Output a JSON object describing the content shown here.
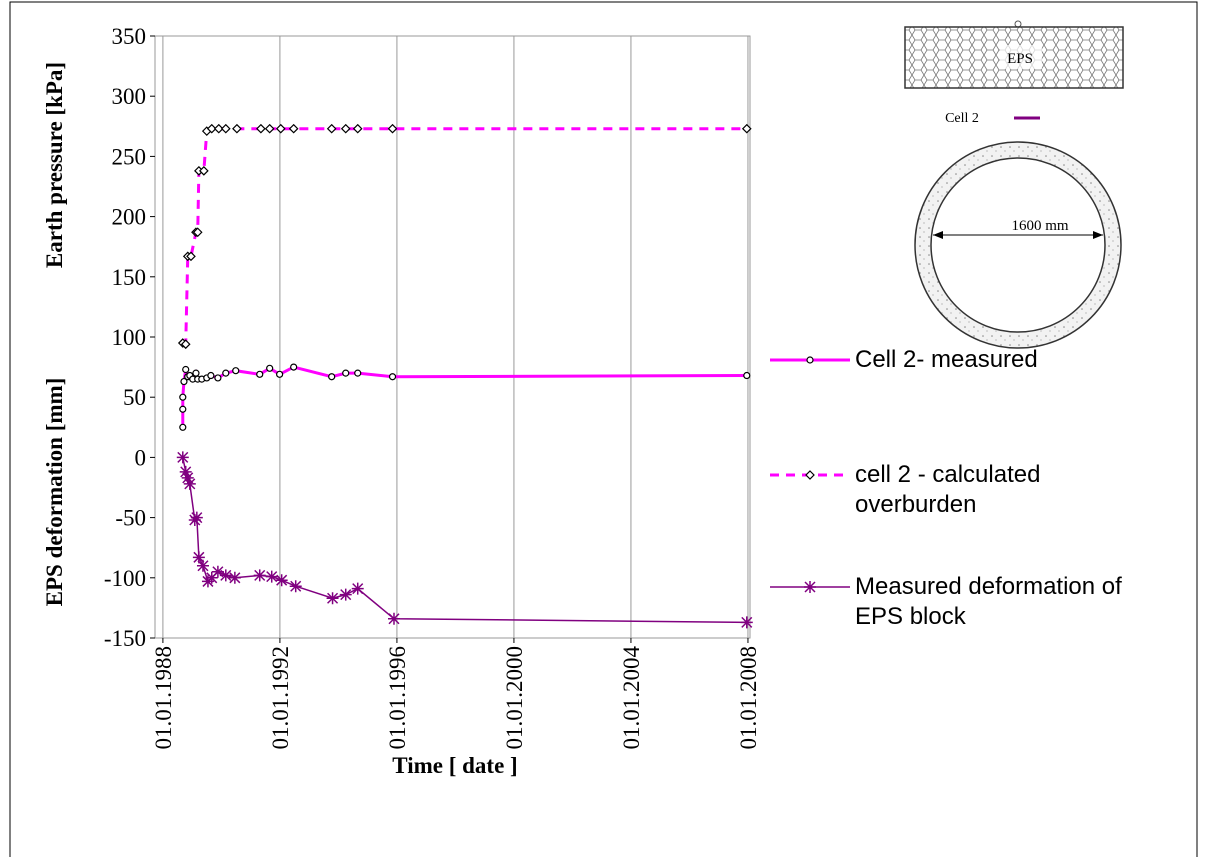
{
  "chart_data": {
    "type": "line",
    "y_axis_labels": [
      "EPS deformation [mm]",
      "Earth pressure [kPa]"
    ],
    "x_axis_label": "Time [ date ]",
    "annotations": [
      "EPS",
      "Cell 2",
      "1600 mm"
    ],
    "xlim": [
      1987.73,
      2008.07
    ],
    "xticks": [
      {
        "value": 1988,
        "label": "01.01.1988"
      },
      {
        "value": 1992,
        "label": "01.01.1992"
      },
      {
        "value": 1996,
        "label": "01.01.1996"
      },
      {
        "value": 2000,
        "label": "01.01.2000"
      },
      {
        "value": 2004,
        "label": "01.01.2004"
      },
      {
        "value": 2008,
        "label": "01.01.2008"
      }
    ],
    "ylim": [
      -150,
      350
    ],
    "yticks": [
      -150,
      -100,
      -50,
      0,
      50,
      100,
      150,
      200,
      250,
      300,
      350
    ],
    "grid": "x",
    "series": [
      {
        "name": "Cell 2- measured",
        "color": "#ff00ff",
        "marker": "circle",
        "dash": false,
        "width": 3,
        "x": [
          1988.68,
          1988.68,
          1988.68,
          1988.72,
          1988.78,
          1988.85,
          1988.92,
          1989.02,
          1989.13,
          1989.19,
          1989.33,
          1989.5,
          1989.64,
          1989.88,
          1990.15,
          1990.49,
          1991.31,
          1991.65,
          1991.99,
          1992.47,
          1993.77,
          1994.25,
          1994.66,
          1995.85,
          2007.96
        ],
        "values": [
          25,
          40,
          50,
          63,
          73,
          67,
          68,
          65,
          70,
          65,
          65,
          66,
          68,
          66,
          70,
          72,
          69,
          74,
          69,
          75,
          67,
          70,
          70,
          67,
          68
        ]
      },
      {
        "name": "cell 2 - calculated overburden",
        "color": "#ff00ff",
        "marker": "diamond",
        "dash": true,
        "width": 3,
        "x": [
          1988.68,
          1988.78,
          1988.85,
          1988.96,
          1989.13,
          1989.19,
          1989.23,
          1989.4,
          1989.5,
          1989.67,
          1989.91,
          1990.15,
          1990.53,
          1991.35,
          1991.65,
          1992.03,
          1992.47,
          1993.77,
          1994.25,
          1994.66,
          1995.85,
          2007.96
        ],
        "values": [
          95,
          94,
          167,
          167,
          187,
          187,
          238,
          238,
          271,
          273,
          273,
          273,
          273,
          273,
          273,
          273,
          273,
          273,
          273,
          273,
          273,
          273
        ]
      },
      {
        "name": "Measured deformation of EPS block",
        "color": "#800080",
        "marker": "star",
        "dash": false,
        "width": 1.5,
        "x": [
          1988.68,
          1988.78,
          1988.85,
          1988.92,
          1989.09,
          1989.16,
          1989.23,
          1989.37,
          1989.54,
          1989.67,
          1989.88,
          1990.15,
          1990.46,
          1991.31,
          1991.72,
          1992.06,
          1992.54,
          1993.8,
          1994.25,
          1994.66,
          1995.9,
          2007.96
        ],
        "values": [
          0,
          -12,
          -17,
          -22,
          -52,
          -50,
          -83,
          -90,
          -103,
          -100,
          -95,
          -98,
          -100,
          -98,
          -99,
          -102,
          -107,
          -117,
          -114,
          -109,
          -134,
          -137
        ]
      }
    ]
  }
}
